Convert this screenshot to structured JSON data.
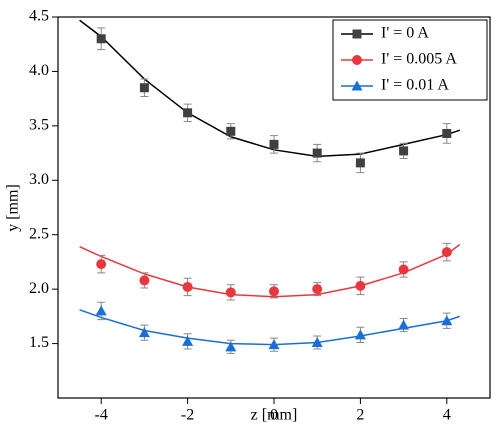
{
  "chart_data": {
    "type": "scatter",
    "x_label": "z [mm]",
    "y_label": "y [mm]",
    "x": [
      -4,
      -3,
      -2,
      -1,
      0,
      1,
      2,
      3,
      4
    ],
    "fit_x": [
      -4.5,
      -4,
      -3,
      -2,
      -1,
      0,
      1,
      2,
      3,
      4,
      4.3
    ],
    "series": [
      {
        "name": "I' = 0 A",
        "color": "#404040",
        "marker": "square",
        "values": [
          4.3,
          3.85,
          3.62,
          3.45,
          3.33,
          3.25,
          3.16,
          3.27,
          3.43
        ],
        "errors": [
          0.1,
          0.08,
          0.08,
          0.07,
          0.08,
          0.08,
          0.09,
          0.07,
          0.09
        ],
        "fit_color": "#000000",
        "fit": [
          4.47,
          4.32,
          3.93,
          3.62,
          3.4,
          3.28,
          3.22,
          3.24,
          3.33,
          3.42,
          3.46
        ]
      },
      {
        "name": "I' = 0.005 A",
        "color": "#e8383d",
        "marker": "circle",
        "values": [
          2.23,
          2.08,
          2.02,
          1.97,
          1.98,
          2.0,
          2.03,
          2.18,
          2.34
        ],
        "errors": [
          0.08,
          0.07,
          0.08,
          0.07,
          0.06,
          0.06,
          0.08,
          0.07,
          0.08
        ],
        "fit_color": "#e8383d",
        "fit": [
          2.39,
          2.3,
          2.14,
          2.02,
          1.95,
          1.93,
          1.95,
          2.03,
          2.15,
          2.32,
          2.41
        ]
      },
      {
        "name": "I' = 0.01 A",
        "color": "#1a6fd6",
        "marker": "triangle",
        "values": [
          1.8,
          1.6,
          1.52,
          1.47,
          1.49,
          1.51,
          1.58,
          1.67,
          1.71
        ],
        "errors": [
          0.08,
          0.07,
          0.07,
          0.06,
          0.06,
          0.06,
          0.07,
          0.06,
          0.07
        ],
        "fit_color": "#1a6fd6",
        "fit": [
          1.81,
          1.74,
          1.62,
          1.55,
          1.5,
          1.49,
          1.51,
          1.57,
          1.64,
          1.71,
          1.75
        ]
      }
    ],
    "xlim": [
      -5,
      5
    ],
    "xticks": [
      -4,
      -2,
      0,
      2,
      4
    ],
    "ylim": [
      1.0,
      4.5
    ],
    "yticks": [
      {
        "value": 1.5,
        "label": "1.5"
      },
      {
        "value": 2,
        "label": "2.0"
      },
      {
        "value": 2.5,
        "label": "2.5"
      },
      {
        "value": 3,
        "label": "3.0"
      },
      {
        "value": 3.5,
        "label": "3.5"
      },
      {
        "value": 4,
        "label": "4.0"
      },
      {
        "value": 4.5,
        "label": "4.5"
      }
    ],
    "legend": "upper right",
    "grid": false
  }
}
